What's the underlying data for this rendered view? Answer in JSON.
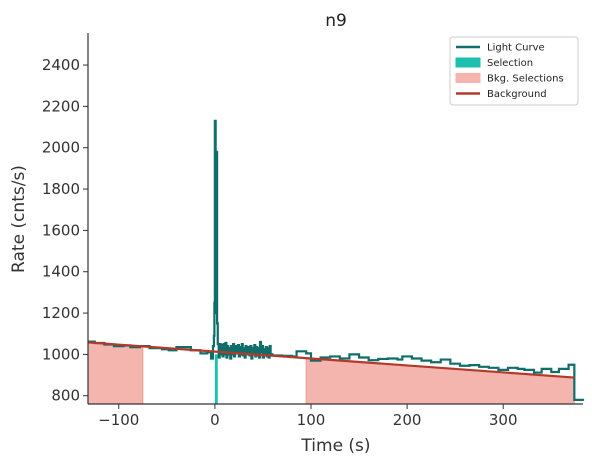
{
  "chart_data": {
    "type": "line",
    "title": "n9",
    "xlabel": "Time (s)",
    "ylabel": "Rate (cnts/s)",
    "xlim": [
      -132,
      383
    ],
    "ylim": [
      760,
      2555
    ],
    "xticks": [
      -100,
      0,
      100,
      200,
      300
    ],
    "xtick_labels": [
      "−100",
      "0",
      "100",
      "200",
      "300"
    ],
    "yticks": [
      800,
      1000,
      1200,
      1400,
      1600,
      1800,
      2000,
      2200,
      2400
    ],
    "ytick_labels": [
      "800",
      "1000",
      "1200",
      "1400",
      "1600",
      "1800",
      "2000",
      "2200",
      "2400"
    ],
    "grid": false,
    "legend": {
      "placement": "top-right",
      "entries": [
        {
          "label": "Light Curve",
          "kind": "line",
          "color": "#0f6e6a"
        },
        {
          "label": "Selection",
          "kind": "patch",
          "color": "#1dbfb0"
        },
        {
          "label": "Bkg. Selections",
          "kind": "patch",
          "color": "#f4b5ae"
        },
        {
          "label": "Background",
          "kind": "line",
          "color": "#b33a2a"
        }
      ]
    },
    "series": [
      {
        "name": "Light Curve",
        "color": "#0f6e6a",
        "steps": [
          [
            -132,
            1062
          ],
          [
            -125,
            1055
          ],
          [
            -115,
            1048
          ],
          [
            -105,
            1040
          ],
          [
            -95,
            1043
          ],
          [
            -88,
            1035
          ],
          [
            -78,
            1040
          ],
          [
            -68,
            1030
          ],
          [
            -55,
            1025
          ],
          [
            -48,
            1020
          ],
          [
            -40,
            1035
          ],
          [
            -25,
            1020
          ],
          [
            -15,
            1005
          ],
          [
            -8,
            1010
          ],
          [
            -4,
            980
          ],
          [
            -2,
            1040
          ],
          [
            -1,
            1090
          ],
          [
            -0.5,
            1250
          ],
          [
            0,
            2130
          ],
          [
            0.8,
            1200
          ],
          [
            1.5,
            1980
          ],
          [
            2.3,
            1150
          ],
          [
            3,
            1050
          ],
          [
            4,
            985
          ],
          [
            5,
            1050
          ],
          [
            6,
            1000
          ],
          [
            7,
            1045
          ],
          [
            8,
            990
          ],
          [
            9,
            1050
          ],
          [
            10,
            1000
          ],
          [
            11,
            1055
          ],
          [
            12,
            985
          ],
          [
            13,
            1040
          ],
          [
            14,
            1000
          ],
          [
            15,
            1030
          ],
          [
            16,
            980
          ],
          [
            17,
            1040
          ],
          [
            18,
            1000
          ],
          [
            19,
            1050
          ],
          [
            20,
            990
          ],
          [
            21,
            1040
          ],
          [
            22,
            1005
          ],
          [
            24,
            1045
          ],
          [
            25,
            990
          ],
          [
            26,
            1035
          ],
          [
            27,
            1000
          ],
          [
            28,
            1050
          ],
          [
            29,
            995
          ],
          [
            30,
            1030
          ],
          [
            31,
            985
          ],
          [
            32,
            1040
          ],
          [
            33,
            1000
          ],
          [
            35,
            1035
          ],
          [
            36,
            995
          ],
          [
            37,
            1040
          ],
          [
            38,
            980
          ],
          [
            39,
            1030
          ],
          [
            40,
            1000
          ],
          [
            41,
            1045
          ],
          [
            42,
            990
          ],
          [
            43,
            1035
          ],
          [
            44,
            995
          ],
          [
            45,
            1030
          ],
          [
            46,
            985
          ],
          [
            47,
            1060
          ],
          [
            48,
            1010
          ],
          [
            49,
            1040
          ],
          [
            50,
            985
          ],
          [
            51,
            1025
          ],
          [
            52,
            1000
          ],
          [
            53,
            1035
          ],
          [
            54,
            990
          ],
          [
            55,
            1030
          ],
          [
            56,
            985
          ],
          [
            57,
            1040
          ],
          [
            58,
            1000
          ],
          [
            60,
            995
          ],
          [
            70,
            993
          ],
          [
            80,
            990
          ],
          [
            85,
            1015
          ],
          [
            95,
            1005
          ],
          [
            100,
            970
          ],
          [
            110,
            985
          ],
          [
            120,
            990
          ],
          [
            130,
            980
          ],
          [
            140,
            1000
          ],
          [
            150,
            985
          ],
          [
            160,
            972
          ],
          [
            170,
            978
          ],
          [
            180,
            980
          ],
          [
            190,
            975
          ],
          [
            195,
            990
          ],
          [
            205,
            980
          ],
          [
            215,
            970
          ],
          [
            225,
            962
          ],
          [
            235,
            975
          ],
          [
            245,
            955
          ],
          [
            255,
            945
          ],
          [
            265,
            948
          ],
          [
            275,
            940
          ],
          [
            285,
            935
          ],
          [
            295,
            925
          ],
          [
            305,
            935
          ],
          [
            315,
            930
          ],
          [
            322,
            925
          ],
          [
            332,
            912
          ],
          [
            340,
            930
          ],
          [
            350,
            915
          ],
          [
            358,
            930
          ],
          [
            368,
            950
          ],
          [
            374,
            780
          ],
          [
            383,
            775
          ]
        ]
      },
      {
        "name": "Background",
        "color": "#b33a2a",
        "model": "linear",
        "start": [
          -132,
          1058
        ],
        "end": [
          374,
          888
        ]
      }
    ],
    "source_selection": {
      "name": "Selection",
      "color": "#1dbfb0",
      "range": [
        0,
        3
      ]
    },
    "background_selections": {
      "name": "Bkg. Selections",
      "color": "#f4b5ae",
      "ranges": [
        [
          -132,
          -75
        ],
        [
          95,
          374
        ]
      ]
    }
  }
}
